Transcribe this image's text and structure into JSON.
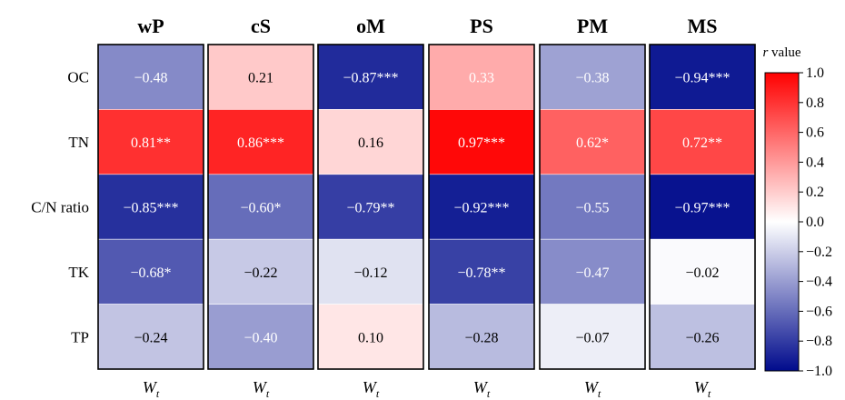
{
  "chart_data": {
    "type": "heatmap",
    "columns": [
      "wP",
      "cS",
      "oM",
      "PS",
      "PM",
      "MS"
    ],
    "rows": [
      "OC",
      "TN",
      "C/N ratio",
      "TK",
      "TP"
    ],
    "values": [
      [
        -0.48,
        0.21,
        -0.87,
        0.33,
        -0.38,
        -0.94
      ],
      [
        0.81,
        0.86,
        0.16,
        0.97,
        0.62,
        0.72
      ],
      [
        -0.85,
        -0.6,
        -0.79,
        -0.92,
        -0.55,
        -0.97
      ],
      [
        -0.68,
        -0.22,
        -0.12,
        -0.78,
        -0.47,
        -0.02
      ],
      [
        -0.24,
        -0.4,
        0.1,
        -0.28,
        -0.07,
        -0.26
      ]
    ],
    "labels": [
      [
        "−0.48",
        "0.21",
        "−0.87***",
        "0.33",
        "−0.38",
        "−0.94***"
      ],
      [
        "0.81**",
        "0.86***",
        "0.16",
        "0.97***",
        "0.62*",
        "0.72**"
      ],
      [
        "−0.85***",
        "−0.60*",
        "−0.79**",
        "−0.92***",
        "−0.55",
        "−0.97***"
      ],
      [
        "−0.68*",
        "−0.22",
        "−0.12",
        "−0.78**",
        "−0.47",
        "−0.02"
      ],
      [
        "−0.24",
        "−0.40",
        "0.10",
        "−0.28",
        "−0.07",
        "−0.26"
      ]
    ],
    "label_colors": [
      [
        "#ffffff",
        "#000000",
        "#ffffff",
        "#ffffff",
        "#ffffff",
        "#ffffff"
      ],
      [
        "#ffffff",
        "#ffffff",
        "#000000",
        "#ffffff",
        "#ffffff",
        "#ffffff"
      ],
      [
        "#ffffff",
        "#ffffff",
        "#ffffff",
        "#ffffff",
        "#ffffff",
        "#ffffff"
      ],
      [
        "#ffffff",
        "#000000",
        "#000000",
        "#ffffff",
        "#ffffff",
        "#000000"
      ],
      [
        "#000000",
        "#ffffff",
        "#000000",
        "#000000",
        "#000000",
        "#000000"
      ]
    ],
    "footer_labels": [
      "W",
      "W",
      "W",
      "W",
      "W",
      "W"
    ],
    "footer_subscripts": [
      "t",
      "t",
      "t",
      "t",
      "t",
      "t"
    ],
    "colorbar": {
      "title_italic": "r",
      "title_rest": " value",
      "min": -1.0,
      "max": 1.0,
      "ticks": [
        "1.0",
        "0.8",
        "0.6",
        "0.4",
        "0.2",
        "0.0",
        "−0.2",
        "−0.4",
        "−0.6",
        "−0.8",
        "−1.0"
      ],
      "tick_values": [
        1.0,
        0.8,
        0.6,
        0.4,
        0.2,
        0.0,
        -0.2,
        -0.4,
        -0.6,
        -0.8,
        -1.0
      ],
      "colormap": {
        "negative": "#000b8c",
        "mid": "#ffffff",
        "positive": "#ff0000"
      }
    }
  }
}
